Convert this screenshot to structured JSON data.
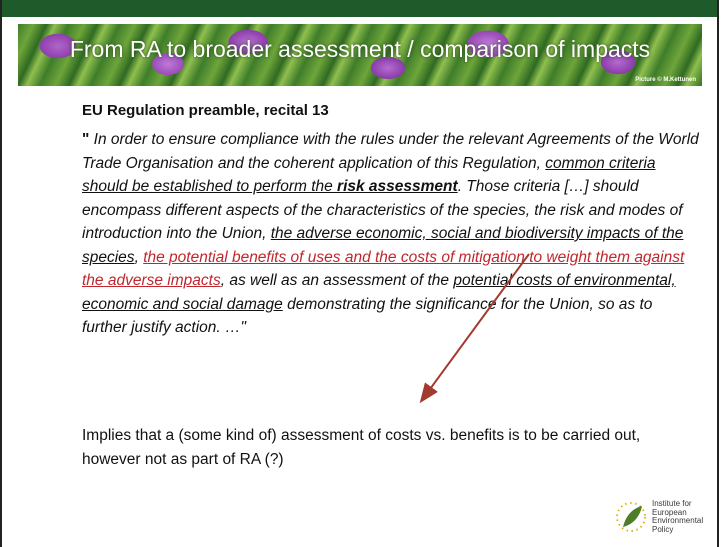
{
  "header": {
    "title": "From RA to broader assessment / comparison of impacts",
    "picture_credit": "Picture © M.Kettunen"
  },
  "body": {
    "heading": "EU Regulation preamble, recital 13",
    "quote": [
      {
        "text": "\"",
        "style": "open"
      },
      {
        "text": " In order to ensure compliance with the rules under the relevant Agreements of the World Trade Organisation and the coherent application of this Regulation, ",
        "style": "plain"
      },
      {
        "text": "common criteria should be established to perform the ",
        "style": "underline"
      },
      {
        "text": "risk assessment",
        "style": "bold-underline"
      },
      {
        "text": ". Those criteria […] should encompass different aspects of the characteristics of the species, the risk and modes of introduction into the Union, ",
        "style": "plain"
      },
      {
        "text": "the adverse economic, social and biodiversity impacts of the species",
        "style": "underline"
      },
      {
        "text": ", ",
        "style": "plain"
      },
      {
        "text": "the potential benefits of uses and the costs of mitigation to weight them against the adverse impacts",
        "style": "red-underline"
      },
      {
        "text": ", as well as an assessment of the ",
        "style": "plain"
      },
      {
        "text": "potential costs of environmental, economic and social damage",
        "style": "underline"
      },
      {
        "text": " demonstrating the significance for the Union, so as to further justify action. …\"",
        "style": "plain"
      }
    ],
    "implication": "Implies that a (some kind of) assessment of costs vs. benefits is to be carried out, however not as part of RA (?)"
  },
  "logo": {
    "lines": [
      "Institute for",
      "European",
      "Environmental",
      "Policy"
    ]
  }
}
